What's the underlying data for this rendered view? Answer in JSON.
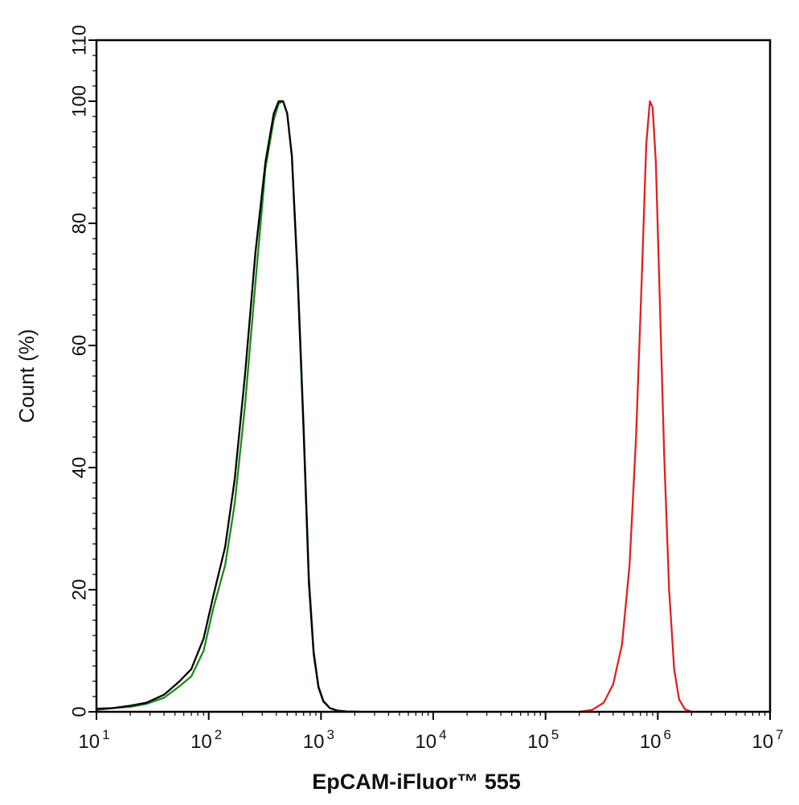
{
  "chart_data": {
    "type": "line",
    "xlabel": "EpCAM-iFluor™ 555",
    "ylabel": "Count  (%)",
    "xscale": "log",
    "xlim": [
      10,
      10000000
    ],
    "ylim": [
      0,
      110
    ],
    "x_tick_labels": [
      {
        "base": "10",
        "exp": "1"
      },
      {
        "base": "10",
        "exp": "2"
      },
      {
        "base": "10",
        "exp": "3"
      },
      {
        "base": "10",
        "exp": "4"
      },
      {
        "base": "10",
        "exp": "5"
      },
      {
        "base": "10",
        "exp": "6"
      },
      {
        "base": "10",
        "exp": "7"
      }
    ],
    "y_ticks": [
      0,
      20,
      40,
      60,
      80,
      100,
      110
    ],
    "y_tick_labels": [
      "0",
      "20",
      "40",
      "60",
      "80",
      "100",
      "110"
    ],
    "grid": false,
    "legend": "none",
    "series": [
      {
        "color": "#1a8a1a",
        "x": [
          10,
          14,
          20,
          28,
          40,
          55,
          70,
          90,
          110,
          140,
          170,
          210,
          260,
          320,
          380,
          420,
          460,
          500,
          550,
          620,
          700,
          780,
          860,
          950,
          1050,
          1200,
          1400,
          1700,
          2200
        ],
        "y": [
          0.3,
          0.6,
          0.8,
          1.3,
          2.3,
          4.2,
          5.8,
          10,
          17,
          24,
          34,
          50,
          70,
          89,
          97,
          99.6,
          100,
          98,
          91,
          72,
          47,
          22,
          10,
          4.2,
          1.8,
          0.6,
          0.2,
          0.05,
          0
        ]
      },
      {
        "color": "#000000",
        "x": [
          10,
          14,
          20,
          28,
          40,
          55,
          70,
          90,
          110,
          140,
          170,
          210,
          260,
          320,
          380,
          420,
          460,
          500,
          550,
          620,
          700,
          780,
          860,
          950,
          1050,
          1200,
          1400,
          1700,
          2200
        ],
        "y": [
          0.5,
          0.6,
          1,
          1.5,
          2.8,
          5,
          7,
          12,
          19,
          27,
          38,
          55,
          75,
          90,
          98,
          100,
          100,
          98,
          91,
          71,
          46,
          21,
          9.5,
          4,
          1.7,
          0.6,
          0.2,
          0.05,
          0
        ]
      },
      {
        "color": "#e02020",
        "x": [
          200000,
          260000,
          330000,
          400000,
          480000,
          560000,
          640000,
          720000,
          790000,
          850000,
          900000,
          960000,
          1040000,
          1140000,
          1260000,
          1400000,
          1550000,
          1750000,
          2000000
        ],
        "y": [
          0,
          0.3,
          1.5,
          4.5,
          11,
          24,
          45,
          71,
          93,
          100,
          99,
          90,
          68,
          42,
          20,
          7,
          2,
          0.4,
          0
        ]
      }
    ]
  }
}
